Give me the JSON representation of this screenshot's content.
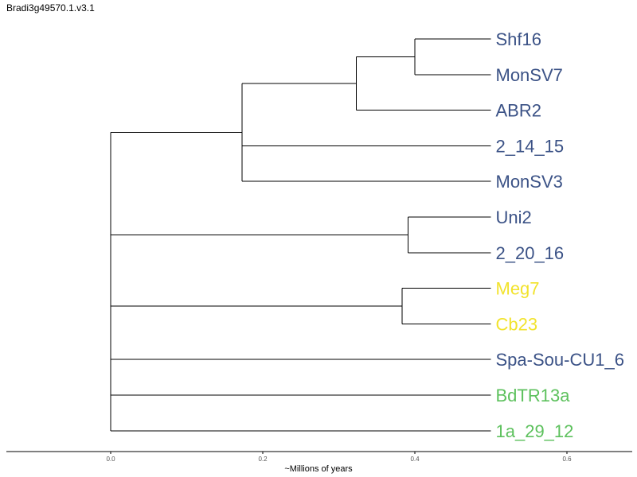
{
  "title": "Bradi3g49570.1.v3.1",
  "colors": {
    "blue": "#3b5286",
    "yellow": "#f2e32c",
    "green": "#5dc15d"
  },
  "tree": {
    "children": [
      {
        "children": [
          {
            "children": [
              {
                "children": [
                  {
                    "name": "Shf16",
                    "color": "blue"
                  },
                  {
                    "name": "MonSV7",
                    "color": "blue"
                  }
                ],
                "height": 0.4
              },
              {
                "name": "ABR2",
                "color": "blue"
              }
            ],
            "height": 0.323
          },
          {
            "name": "2_14_15",
            "color": "blue"
          },
          {
            "name": "MonSV3",
            "color": "blue"
          }
        ],
        "height": 0.173
      },
      {
        "children": [
          {
            "name": "Uni2",
            "color": "blue"
          },
          {
            "name": "2_20_16",
            "color": "blue"
          }
        ],
        "height": 0.391
      },
      {
        "children": [
          {
            "name": "Meg7",
            "color": "yellow"
          },
          {
            "name": "Cb23",
            "color": "yellow"
          }
        ],
        "height": 0.383
      },
      {
        "name": "Spa-Sou-CU1_6",
        "color": "blue"
      },
      {
        "name": "BdTR13a",
        "color": "green"
      },
      {
        "name": "1a_29_12",
        "color": "green"
      }
    ],
    "height": 0.0
  },
  "leaf_height": 0.5,
  "axis": {
    "ticks": [
      0.0,
      0.2,
      0.4,
      0.6
    ],
    "tick_labels": [
      "0.0",
      "0.2",
      "0.4",
      "0.6"
    ],
    "xlim": [
      -0.14,
      0.685
    ],
    "label": "~Millions of years"
  }
}
